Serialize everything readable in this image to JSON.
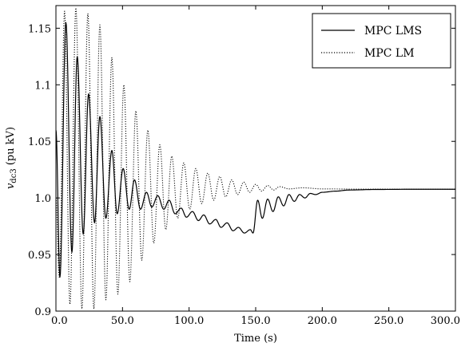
{
  "chart_data": {
    "type": "line",
    "xlabel": "Time (s)",
    "ylabel_symbol": "v",
    "ylabel_subscript": "dc3",
    "ylabel_unit": " (pu kV)",
    "xlim": [
      0,
      300
    ],
    "ylim": [
      0.9,
      1.17
    ],
    "x_ticks": [
      0,
      50,
      100,
      150,
      200,
      250,
      300
    ],
    "x_tick_labels": [
      "0.0",
      "50.0",
      "100.0",
      "150.0",
      "200.0",
      "250.0",
      "300.0"
    ],
    "y_ticks": [
      0.9,
      0.95,
      1.0,
      1.05,
      1.1,
      1.15
    ],
    "y_tick_labels": [
      "0.9",
      "0.95",
      "1.0",
      "1.05",
      "1.1",
      "1.15"
    ],
    "grid": false,
    "legend_position": "top-right",
    "series": [
      {
        "name": "MPC LMS",
        "style": "solid",
        "peaks": [
          {
            "t": 0,
            "v": 1.06
          },
          {
            "t": 3,
            "v": 0.93
          },
          {
            "t": 7.5,
            "v": 1.155
          },
          {
            "t": 12,
            "v": 0.952
          },
          {
            "t": 16,
            "v": 1.125
          },
          {
            "t": 20.5,
            "v": 0.968
          },
          {
            "t": 24.5,
            "v": 1.092
          },
          {
            "t": 29,
            "v": 0.978
          },
          {
            "t": 33,
            "v": 1.072
          },
          {
            "t": 37.5,
            "v": 0.982
          },
          {
            "t": 42,
            "v": 1.042
          },
          {
            "t": 46,
            "v": 0.986
          },
          {
            "t": 50.5,
            "v": 1.026
          },
          {
            "t": 55,
            "v": 0.99
          },
          {
            "t": 59,
            "v": 1.016
          },
          {
            "t": 63.5,
            "v": 0.99
          },
          {
            "t": 68,
            "v": 1.005
          },
          {
            "t": 72,
            "v": 0.992
          },
          {
            "t": 76.5,
            "v": 1.002
          },
          {
            "t": 81,
            "v": 0.99
          },
          {
            "t": 85,
            "v": 0.998
          },
          {
            "t": 89.5,
            "v": 0.986
          },
          {
            "t": 94,
            "v": 0.991
          },
          {
            "t": 98,
            "v": 0.983
          },
          {
            "t": 102.5,
            "v": 0.988
          },
          {
            "t": 107,
            "v": 0.98
          },
          {
            "t": 111,
            "v": 0.985
          },
          {
            "t": 115.5,
            "v": 0.977
          },
          {
            "t": 120,
            "v": 0.981
          },
          {
            "t": 124,
            "v": 0.974
          },
          {
            "t": 128.5,
            "v": 0.978
          },
          {
            "t": 133,
            "v": 0.971
          },
          {
            "t": 137,
            "v": 0.974
          },
          {
            "t": 141.5,
            "v": 0.969
          },
          {
            "t": 146,
            "v": 0.972
          },
          {
            "t": 148,
            "v": 0.969
          },
          {
            "t": 151.5,
            "v": 0.998
          },
          {
            "t": 155,
            "v": 0.982
          },
          {
            "t": 159,
            "v": 0.999
          },
          {
            "t": 163,
            "v": 0.988
          },
          {
            "t": 167,
            "v": 1.001
          },
          {
            "t": 171,
            "v": 0.993
          },
          {
            "t": 175,
            "v": 1.003
          },
          {
            "t": 179,
            "v": 0.997
          },
          {
            "t": 183,
            "v": 1.003
          },
          {
            "t": 187,
            "v": 1.0
          },
          {
            "t": 191,
            "v": 1.004
          },
          {
            "t": 195,
            "v": 1.003
          },
          {
            "t": 200,
            "v": 1.005
          },
          {
            "t": 210,
            "v": 1.006
          },
          {
            "t": 220,
            "v": 1.007
          },
          {
            "t": 240,
            "v": 1.0075
          },
          {
            "t": 270,
            "v": 1.0077
          },
          {
            "t": 300,
            "v": 1.0077
          }
        ]
      },
      {
        "name": "MPC LM",
        "style": "dotted",
        "peaks": [
          {
            "t": 0,
            "v": 1.0
          },
          {
            "t": 2.5,
            "v": 0.93
          },
          {
            "t": 6.5,
            "v": 1.165
          },
          {
            "t": 10.5,
            "v": 0.906
          },
          {
            "t": 15,
            "v": 1.168
          },
          {
            "t": 19.5,
            "v": 0.902
          },
          {
            "t": 24,
            "v": 1.163
          },
          {
            "t": 28.5,
            "v": 0.902
          },
          {
            "t": 33,
            "v": 1.153
          },
          {
            "t": 37.5,
            "v": 0.91
          },
          {
            "t": 42,
            "v": 1.124
          },
          {
            "t": 46.5,
            "v": 0.915
          },
          {
            "t": 51,
            "v": 1.1
          },
          {
            "t": 55.5,
            "v": 0.926
          },
          {
            "t": 60,
            "v": 1.077
          },
          {
            "t": 64.5,
            "v": 0.945
          },
          {
            "t": 69,
            "v": 1.06
          },
          {
            "t": 73.5,
            "v": 0.96
          },
          {
            "t": 78,
            "v": 1.047
          },
          {
            "t": 82.5,
            "v": 0.972
          },
          {
            "t": 87,
            "v": 1.037
          },
          {
            "t": 91.5,
            "v": 0.982
          },
          {
            "t": 96,
            "v": 1.031
          },
          {
            "t": 100.5,
            "v": 0.99
          },
          {
            "t": 105,
            "v": 1.026
          },
          {
            "t": 109.5,
            "v": 0.995
          },
          {
            "t": 114,
            "v": 1.022
          },
          {
            "t": 118.5,
            "v": 0.998
          },
          {
            "t": 123,
            "v": 1.019
          },
          {
            "t": 127.5,
            "v": 1.001
          },
          {
            "t": 132,
            "v": 1.016
          },
          {
            "t": 136.5,
            "v": 1.003
          },
          {
            "t": 141,
            "v": 1.014
          },
          {
            "t": 145.5,
            "v": 1.005
          },
          {
            "t": 150,
            "v": 1.012
          },
          {
            "t": 154.5,
            "v": 1.006
          },
          {
            "t": 159,
            "v": 1.011
          },
          {
            "t": 163.5,
            "v": 1.007
          },
          {
            "t": 168,
            "v": 1.01
          },
          {
            "t": 175,
            "v": 1.008
          },
          {
            "t": 185,
            "v": 1.009
          },
          {
            "t": 200,
            "v": 1.008
          },
          {
            "t": 230,
            "v": 1.0078
          },
          {
            "t": 300,
            "v": 1.0077
          }
        ]
      }
    ]
  }
}
